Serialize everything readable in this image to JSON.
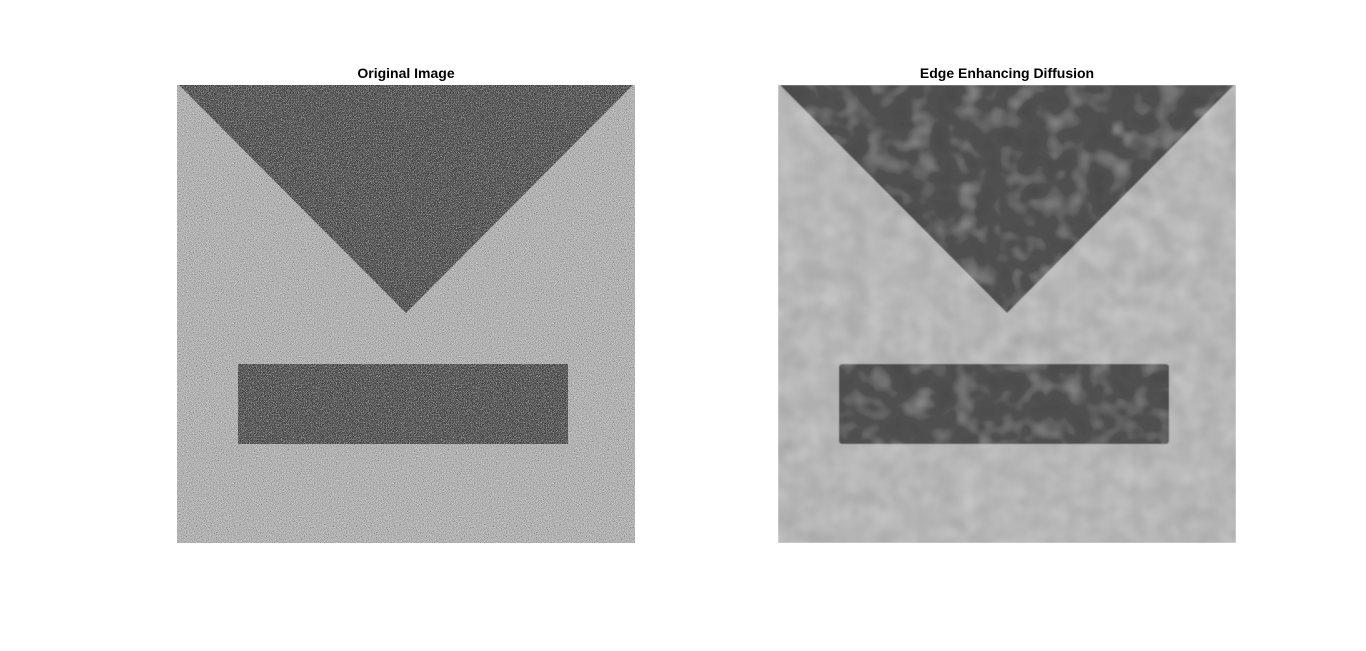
{
  "panels": [
    {
      "title": "Original Image",
      "image": "noisy grayscale image: dark inverted triangle at top and dark horizontal rectangle below on light background"
    },
    {
      "title": "Edge Enhancing Diffusion",
      "image": "denoised grayscale image: dark inverted triangle at top and dark horizontal rectangle below on light background"
    }
  ],
  "colors": {
    "background": "#ffffff",
    "light_region": "#b8b8b8",
    "dark_region": "#4a4a4a",
    "noise_light": "#d0d0d0",
    "noise_dark": "#909090"
  }
}
